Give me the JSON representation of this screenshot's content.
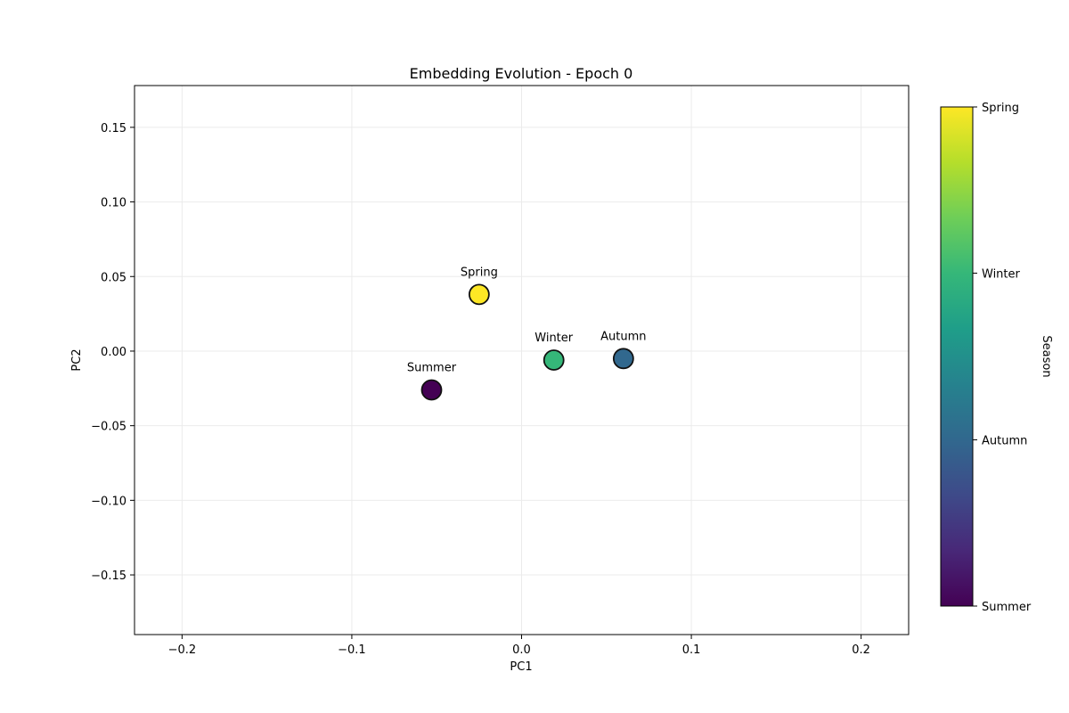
{
  "chart_data": {
    "type": "scatter",
    "title": "Embedding Evolution - Epoch 0",
    "xlabel": "PC1",
    "ylabel": "PC2",
    "xlim": [
      -0.228,
      0.228
    ],
    "ylim": [
      -0.19,
      0.178
    ],
    "grid": true,
    "x_ticks": [
      -0.2,
      -0.1,
      0.0,
      0.1,
      0.2
    ],
    "x_tick_labels": [
      "−0.2",
      "−0.1",
      "0.0",
      "0.1",
      "0.2"
    ],
    "y_ticks": [
      0.15,
      0.1,
      0.05,
      0.0,
      -0.05,
      -0.1,
      -0.15
    ],
    "y_tick_labels": [
      "0.15",
      "0.10",
      "0.05",
      "0.00",
      "−0.05",
      "−0.10",
      "−0.15"
    ],
    "points": [
      {
        "label": "Spring",
        "x": -0.025,
        "y": 0.038,
        "color": "#fde725"
      },
      {
        "label": "Winter",
        "x": 0.019,
        "y": -0.006,
        "color": "#35b779"
      },
      {
        "label": "Autumn",
        "x": 0.06,
        "y": -0.005,
        "color": "#31688e"
      },
      {
        "label": "Summer",
        "x": -0.053,
        "y": -0.026,
        "color": "#440154"
      }
    ],
    "colorbar": {
      "label": "Season",
      "colormap": "viridis",
      "stops": [
        "#440154",
        "#482878",
        "#3e4a89",
        "#31688e",
        "#26828e",
        "#1f9e89",
        "#35b779",
        "#6ece58",
        "#b5de2b",
        "#fde725"
      ],
      "ticks": [
        {
          "label": "Summer",
          "fraction": 0.0
        },
        {
          "label": "Autumn",
          "fraction": 0.333
        },
        {
          "label": "Winter",
          "fraction": 0.667
        },
        {
          "label": "Spring",
          "fraction": 1.0
        }
      ]
    }
  }
}
